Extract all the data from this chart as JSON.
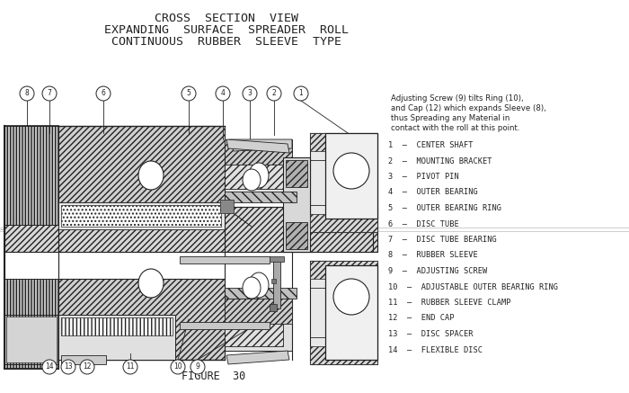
{
  "title_lines": [
    "CROSS  SECTION  VIEW",
    "EXPANDING  SURFACE  SPREADER  ROLL",
    "CONTINUOUS  RUBBER  SLEEVE  TYPE"
  ],
  "figure_label": "FIGURE  30",
  "note_text": "Adjusting Screw (9) tilts Ring (10),\nand Cap (12) which expands Sleeve (8),\nthus Spreading any Material in\ncontact with the roll at this point.",
  "legend_items": [
    "1  –  CENTER SHAFT",
    "2  –  MOUNTING BRACKET",
    "3  –  PIVOT PIN",
    "4  –  OUTER BEARING",
    "5  –  OUTER BEARING RING",
    "6  –  DISC TUBE",
    "7  –  DISC TUBE BEARING",
    "8  –  RUBBER SLEEVE",
    "9  –  ADJUSTING SCREW",
    "10  –  ADJUSTABLE OUTER BEARING RING",
    "11  –  RUBBER SLEEVE CLAMP",
    "12  –  END CAP",
    "13  –  DISC SPACER",
    "14  –  FLEXIBLE DISC"
  ],
  "bg_color": "#ffffff",
  "drawing_color": "#222222",
  "font_size_title": 9.5,
  "font_size_legend": 6.2,
  "font_size_note": 6.2,
  "font_size_figure": 8.5,
  "font_size_callout": 5.5
}
